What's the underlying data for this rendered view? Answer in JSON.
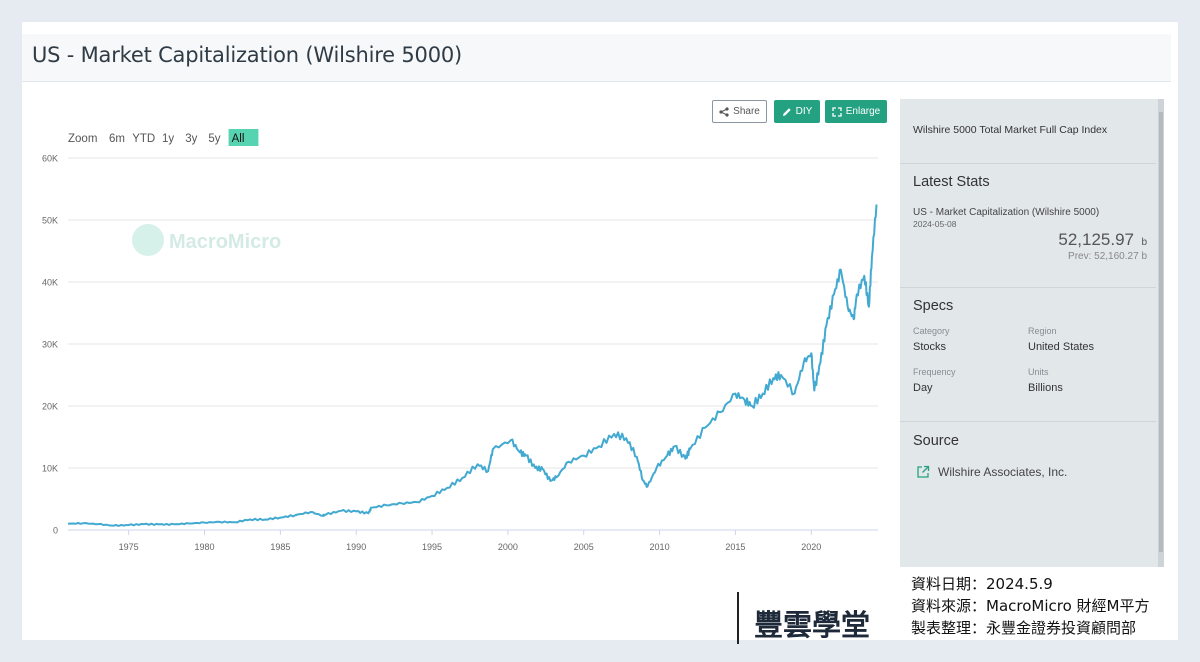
{
  "header": {
    "title": "US - Market Capitalization (Wilshire 5000)"
  },
  "toolbar": {
    "share": "Share",
    "diy": "DIY",
    "enlarge": "Enlarge"
  },
  "zoom": {
    "label": "Zoom",
    "options": [
      "6m",
      "YTD",
      "1y",
      "3y",
      "5y",
      "All"
    ],
    "selected": "All"
  },
  "watermark": "MacroMicro",
  "colors": {
    "line": "#42a9d1",
    "accent": "#23a181",
    "selected_zoom": "#56d3b0"
  },
  "side": {
    "description": "Wilshire 5000 Total Market Full Cap Index",
    "latest": {
      "heading": "Latest Stats",
      "series_name": "US - Market Capitalization (Wilshire 5000)",
      "date": "2024-05-08",
      "value": "52,125.97",
      "unit": "b",
      "prev_label": "Prev:",
      "prev_value": "52,160.27",
      "prev_unit": "b"
    },
    "specs": {
      "heading": "Specs",
      "category_label": "Category",
      "category": "Stocks",
      "region_label": "Region",
      "region": "United States",
      "frequency_label": "Frequency",
      "frequency": "Day",
      "units_label": "Units",
      "units": "Billions"
    },
    "source": {
      "heading": "Source",
      "name": "Wilshire Associates, Inc."
    }
  },
  "footer": {
    "logo": "豐雲學堂",
    "line1": "資料日期：2024.5.9",
    "line2": "資料來源：MacroMicro 財經M平方",
    "line3": "製表整理：永豐金證券投資顧問部"
  },
  "chart_data": {
    "type": "line",
    "title": "US - Market Capitalization (Wilshire 5000)",
    "xlabel": "",
    "ylabel": "",
    "ylim": [
      0,
      60000
    ],
    "xlim": [
      1971,
      2024.4
    ],
    "y_ticks": [
      0,
      10000,
      20000,
      30000,
      40000,
      50000,
      60000
    ],
    "y_tick_labels": [
      "0",
      "10K",
      "20K",
      "30K",
      "40K",
      "50K",
      "60K"
    ],
    "x_ticks": [
      1975,
      1980,
      1985,
      1990,
      1995,
      2000,
      2005,
      2010,
      2015,
      2020
    ],
    "x_tick_labels": [
      "1975",
      "1980",
      "1985",
      "1990",
      "1995",
      "2000",
      "2005",
      "2010",
      "2015",
      "2020"
    ],
    "series": [
      {
        "name": "US - Market Capitalization (Wilshire 5000)",
        "x": [
          1971,
          1972,
          1973,
          1974,
          1975,
          1976,
          1977,
          1978,
          1979,
          1980,
          1981,
          1982,
          1983,
          1984,
          1985,
          1986,
          1987,
          1987.8,
          1988,
          1989,
          1990,
          1990.8,
          1991,
          1992,
          1993,
          1994,
          1995,
          1996,
          1997,
          1998,
          1998.7,
          1999,
          2000.2,
          2000.8,
          2001.2,
          2001.8,
          2002.3,
          2002.8,
          2003.2,
          2004,
          2005,
          2006,
          2007,
          2007.8,
          2008.5,
          2008.9,
          2009.2,
          2009.8,
          2010.5,
          2011,
          2011.7,
          2012,
          2013,
          2014,
          2015,
          2015.6,
          2016.1,
          2016.8,
          2017.5,
          2018,
          2018.9,
          2019.5,
          2020,
          2020.2,
          2020.6,
          2021,
          2021.5,
          2021.95,
          2022.4,
          2022.8,
          2023,
          2023.5,
          2023.8,
          2024,
          2024.3
        ],
        "values": [
          1000,
          1100,
          950,
          700,
          800,
          950,
          900,
          920,
          1050,
          1200,
          1300,
          1250,
          1700,
          1700,
          2000,
          2400,
          2900,
          2300,
          2500,
          3100,
          3000,
          2700,
          3600,
          4000,
          4300,
          4500,
          5500,
          6800,
          8400,
          10600,
          9500,
          13000,
          14500,
          12500,
          12000,
          10000,
          9800,
          7900,
          8500,
          11000,
          12000,
          13500,
          15500,
          14800,
          11800,
          8000,
          7000,
          10000,
          12000,
          13500,
          11500,
          13000,
          16500,
          19000,
          22000,
          21000,
          20000,
          22000,
          24500,
          25000,
          22000,
          27000,
          28500,
          22500,
          27000,
          33000,
          38000,
          42000,
          36000,
          34000,
          38000,
          41000,
          36000,
          44000,
          52500
        ]
      }
    ]
  }
}
